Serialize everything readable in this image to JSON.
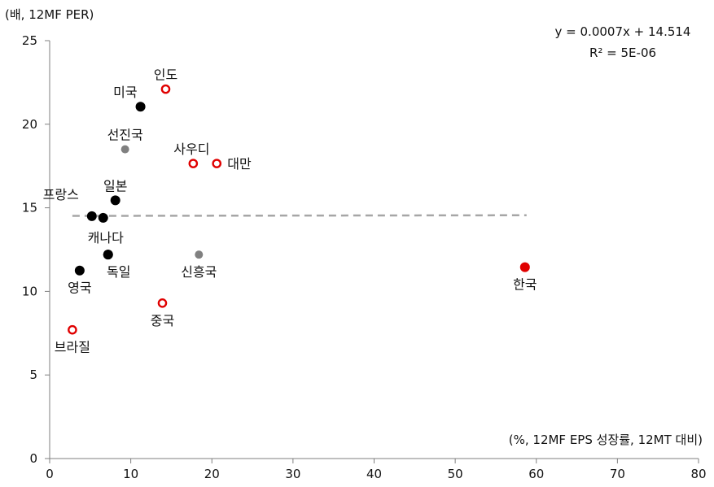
{
  "chart_data": {
    "type": "scatter",
    "ylabel": "(배, 12MF PER)",
    "xlabel": "(%, 12MF EPS 성장률, 12MT 대비)",
    "xlim": [
      0,
      80
    ],
    "ylim": [
      0,
      25
    ],
    "xticks": [
      0,
      10,
      20,
      30,
      40,
      50,
      60,
      70,
      80
    ],
    "yticks": [
      0,
      5,
      10,
      15,
      20,
      25
    ],
    "grid": false,
    "regression": {
      "equation": "y = 0.0007x + 14.514",
      "r2": "R² = 5E-06",
      "slope": 0.0007,
      "intercept": 14.514,
      "x_range": [
        2.8,
        58.8
      ]
    },
    "points": [
      {
        "label": "미국",
        "x": 11.2,
        "y": 21.05,
        "style": "black",
        "label_pos": "above-left"
      },
      {
        "label": "인도",
        "x": 14.3,
        "y": 22.1,
        "style": "red-open",
        "label_pos": "above"
      },
      {
        "label": "선진국",
        "x": 9.3,
        "y": 18.5,
        "style": "gray",
        "label_pos": "above"
      },
      {
        "label": "사우디",
        "x": 17.7,
        "y": 17.65,
        "style": "red-open",
        "label_pos": "above"
      },
      {
        "label": "대만",
        "x": 20.6,
        "y": 17.65,
        "style": "red-open",
        "label_pos": "right"
      },
      {
        "label": "일본",
        "x": 8.1,
        "y": 15.45,
        "style": "black",
        "label_pos": "above"
      },
      {
        "label": "프랑스",
        "x": 5.2,
        "y": 14.5,
        "style": "black",
        "label_pos": "above-left"
      },
      {
        "label": "",
        "x": 6.6,
        "y": 14.4,
        "style": "black",
        "label_pos": "none"
      },
      {
        "label": "캐나다",
        "x": 7.2,
        "y": 12.2,
        "style": "black",
        "label_pos": "above"
      },
      {
        "label": "독일",
        "x": 7.2,
        "y": 12.2,
        "style": "black",
        "label_pos": "below-right"
      },
      {
        "label": "신흥국",
        "x": 18.4,
        "y": 12.2,
        "style": "gray",
        "label_pos": "below"
      },
      {
        "label": "영국",
        "x": 3.7,
        "y": 11.25,
        "style": "black",
        "label_pos": "below"
      },
      {
        "label": "한국",
        "x": 58.6,
        "y": 11.45,
        "style": "red-filled",
        "label_pos": "below"
      },
      {
        "label": "중국",
        "x": 13.9,
        "y": 9.3,
        "style": "red-open",
        "label_pos": "below"
      },
      {
        "label": "브라질",
        "x": 2.8,
        "y": 7.7,
        "style": "red-open",
        "label_pos": "below"
      }
    ],
    "colors": {
      "black": "#000000",
      "gray": "#808080",
      "red": "#e00000",
      "trend": "#a6a6a6",
      "axis": "#7f7f7f"
    }
  }
}
